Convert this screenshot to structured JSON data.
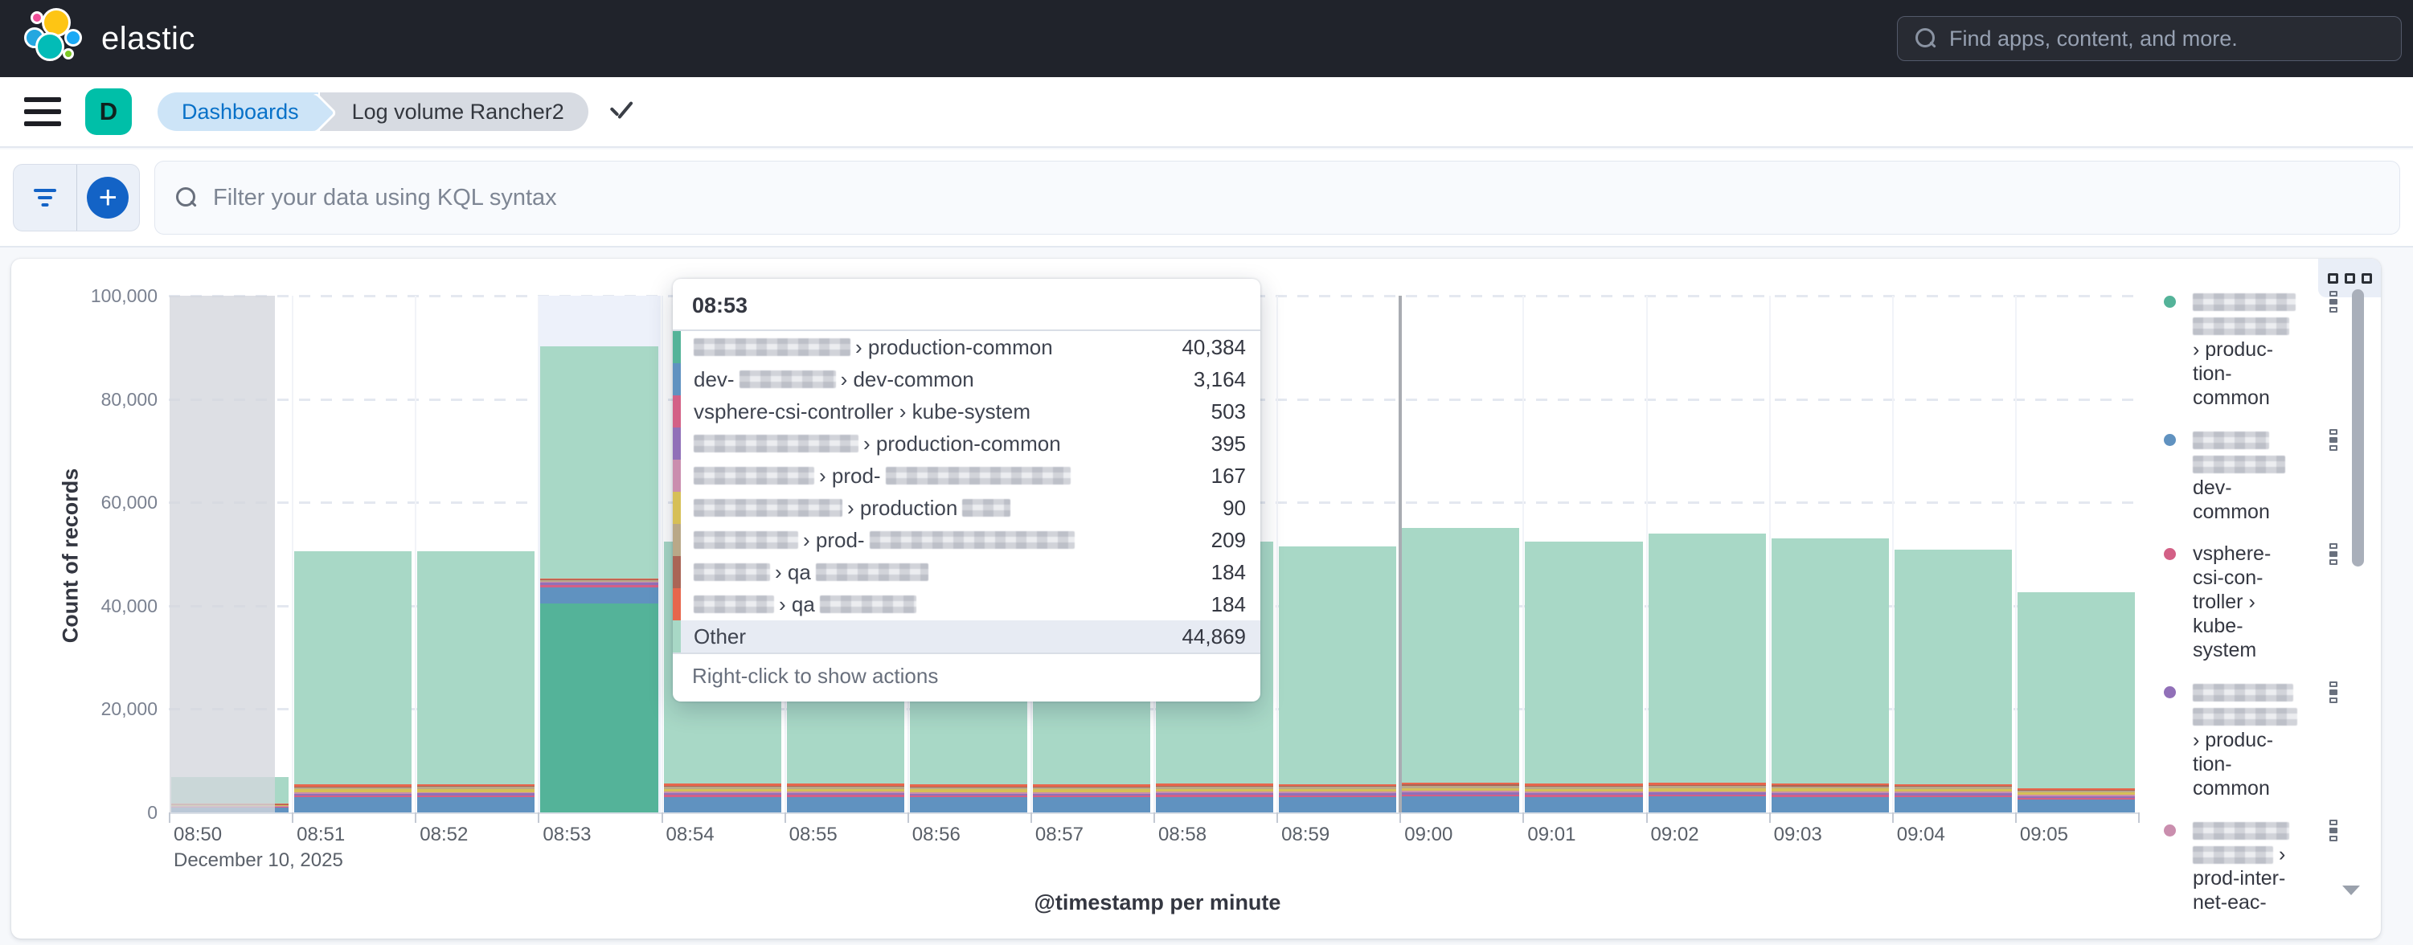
{
  "header": {
    "logo_text": "elastic",
    "search_placeholder": "Find apps, content, and more."
  },
  "navbar": {
    "space_initial": "D",
    "breadcrumb_dashboards": "Dashboards",
    "breadcrumb_page": "Log volume Rancher2"
  },
  "filterbar": {
    "kql_placeholder": "Filter your data using KQL syntax"
  },
  "chart_data": {
    "type": "bar",
    "stacked": true,
    "xlabel": "@timestamp per minute",
    "ylabel": "Count of records",
    "x_date_label": "December 10, 2025",
    "ylim": [
      0,
      100000
    ],
    "yticks": [
      0,
      20000,
      40000,
      60000,
      80000,
      100000
    ],
    "ytick_labels": [
      "0",
      "20,000",
      "40,000",
      "60,000",
      "80,000",
      "100,000"
    ],
    "categories": [
      "08:50",
      "08:51",
      "08:52",
      "08:53",
      "08:54",
      "08:55",
      "08:56",
      "08:57",
      "08:58",
      "08:59",
      "09:00",
      "09:01",
      "09:02",
      "09:03",
      "09:04",
      "09:05"
    ],
    "partial_bucket_index": 0,
    "hovered_index": 3,
    "hour_line_index": 10,
    "legend_position": "right",
    "grid": true,
    "series": [
      {
        "name": "(redacted) › production-common",
        "color": "#54B399",
        "values": [
          0,
          0,
          0,
          40384,
          0,
          0,
          0,
          0,
          0,
          0,
          0,
          0,
          0,
          0,
          0,
          0
        ]
      },
      {
        "name": "dev-(redacted) › dev-common",
        "color": "#6092C0",
        "values": [
          900,
          2900,
          2950,
          3164,
          3000,
          3000,
          2900,
          2900,
          3000,
          2950,
          3100,
          3000,
          3050,
          3020,
          2950,
          2500
        ]
      },
      {
        "name": "vsphere-csi-controller › kube-system",
        "color": "#D36086",
        "values": [
          120,
          380,
          380,
          503,
          390,
          390,
          380,
          380,
          390,
          385,
          400,
          390,
          395,
          392,
          385,
          330
        ]
      },
      {
        "name": "(redacted) › production-common",
        "color": "#9170B8",
        "values": [
          100,
          360,
          360,
          395,
          370,
          370,
          360,
          360,
          370,
          365,
          380,
          370,
          375,
          372,
          365,
          310
        ]
      },
      {
        "name": "(redacted) › prod-(redacted)",
        "color": "#CA8EAE",
        "values": [
          60,
          280,
          280,
          167,
          290,
          290,
          280,
          280,
          290,
          285,
          300,
          290,
          295,
          292,
          285,
          240
        ]
      },
      {
        "name": "(redacted) › production(redacted)",
        "color": "#D6BF57",
        "values": [
          150,
          520,
          520,
          90,
          540,
          540,
          520,
          520,
          540,
          530,
          560,
          540,
          550,
          545,
          530,
          450
        ]
      },
      {
        "name": "(redacted) › prod-(redacted)",
        "color": "#B9A888",
        "values": [
          150,
          420,
          420,
          209,
          430,
          430,
          420,
          420,
          430,
          425,
          445,
          430,
          440,
          435,
          425,
          360
        ]
      },
      {
        "name": "(redacted) › qa (redacted)",
        "color": "#AA6556",
        "values": [
          60,
          180,
          180,
          184,
          185,
          185,
          180,
          180,
          185,
          182,
          190,
          185,
          188,
          186,
          182,
          155
        ]
      },
      {
        "name": "(redacted) › qa (redacted)",
        "color": "#E7664C",
        "values": [
          160,
          380,
          380,
          184,
          390,
          390,
          380,
          380,
          390,
          385,
          400,
          390,
          395,
          392,
          385,
          330
        ]
      },
      {
        "name": "Other",
        "color": "#A8D8C6",
        "values": [
          5200,
          45200,
          45100,
          44869,
          46800,
          46800,
          45200,
          44700,
          46800,
          46000,
          49300,
          46800,
          48300,
          47400,
          45400,
          37900
        ]
      }
    ]
  },
  "tooltip": {
    "title": "08:53",
    "footer": "Right-click to show actions",
    "rows": [
      {
        "color": "#54B399",
        "value": "40,384",
        "highlight": false,
        "segments": [
          {
            "r": 195
          },
          {
            "t": "› production-common"
          }
        ]
      },
      {
        "color": "#6092C0",
        "value": "3,164",
        "highlight": false,
        "segments": [
          {
            "t": "dev-"
          },
          {
            "r": 120
          },
          {
            "t": "› dev-common"
          }
        ]
      },
      {
        "color": "#D36086",
        "value": "503",
        "highlight": false,
        "segments": [
          {
            "t": "vsphere-csi-controller › kube-system"
          }
        ]
      },
      {
        "color": "#9170B8",
        "value": "395",
        "highlight": false,
        "segments": [
          {
            "r": 205
          },
          {
            "t": "› production-common"
          }
        ]
      },
      {
        "color": "#CA8EAE",
        "value": "167",
        "highlight": false,
        "segments": [
          {
            "r": 150
          },
          {
            "t": "› prod-"
          },
          {
            "r": 230
          }
        ]
      },
      {
        "color": "#D6BF57",
        "value": "90",
        "highlight": false,
        "segments": [
          {
            "r": 185
          },
          {
            "t": "› production"
          },
          {
            "r": 60
          }
        ]
      },
      {
        "color": "#B9A888",
        "value": "209",
        "highlight": false,
        "segments": [
          {
            "r": 130
          },
          {
            "t": "› prod-"
          },
          {
            "r": 255
          }
        ]
      },
      {
        "color": "#AA6556",
        "value": "184",
        "highlight": false,
        "segments": [
          {
            "r": 95
          },
          {
            "t": "› qa"
          },
          {
            "r": 140
          }
        ]
      },
      {
        "color": "#E7664C",
        "value": "184",
        "highlight": false,
        "segments": [
          {
            "r": 100
          },
          {
            "t": "› qa"
          },
          {
            "r": 120
          }
        ]
      },
      {
        "color": "#A8D8C6",
        "value": "44,869",
        "highlight": true,
        "segments": [
          {
            "t": "Other"
          }
        ]
      }
    ]
  },
  "legend": {
    "items": [
      {
        "color": "#54B399",
        "lines": [
          [
            {
              "r": 128
            }
          ],
          [
            {
              "r": 120
            }
          ],
          [
            {
              "t": "› produc-"
            }
          ],
          [
            {
              "t": "tion-"
            }
          ],
          [
            {
              "t": "common"
            }
          ]
        ]
      },
      {
        "color": "#6092C0",
        "lines": [
          [
            {
              "r": 95
            }
          ],
          [
            {
              "r": 115
            }
          ],
          [
            {
              "t": "dev-"
            }
          ],
          [
            {
              "t": "common"
            }
          ]
        ]
      },
      {
        "color": "#D36086",
        "lines": [
          [
            {
              "t": "vsphere-"
            }
          ],
          [
            {
              "t": "csi-con-"
            }
          ],
          [
            {
              "t": "troller ›"
            }
          ],
          [
            {
              "t": "kube-"
            }
          ],
          [
            {
              "t": "system"
            }
          ]
        ]
      },
      {
        "color": "#9170B8",
        "lines": [
          [
            {
              "r": 125
            }
          ],
          [
            {
              "r": 130
            }
          ],
          [
            {
              "t": "› produc-"
            }
          ],
          [
            {
              "t": "tion-"
            }
          ],
          [
            {
              "t": "common"
            }
          ]
        ]
      },
      {
        "color": "#CA8EAE",
        "lines": [
          [
            {
              "r": 120
            }
          ],
          [
            {
              "r": 100
            },
            {
              "t": " ›"
            }
          ],
          [
            {
              "t": "prod-inter-"
            }
          ],
          [
            {
              "t": "net-eac-"
            }
          ]
        ]
      }
    ]
  }
}
